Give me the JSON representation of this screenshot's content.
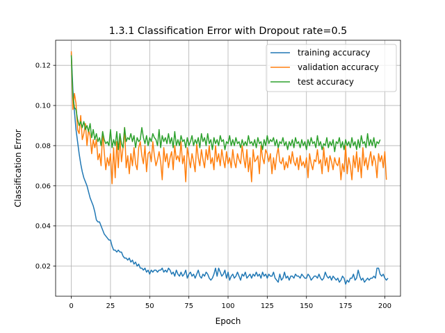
{
  "chart_data": {
    "type": "line",
    "title": "1.3.1 Classification Error with Dropout rate=0.5",
    "xlabel": "Epoch",
    "ylabel": "Classification Error",
    "xlim": [
      -10,
      210
    ],
    "ylim": [
      0.005,
      0.1325
    ],
    "xticks": [
      0,
      25,
      50,
      75,
      100,
      125,
      150,
      175,
      200
    ],
    "xtick_labels": [
      "0",
      "25",
      "50",
      "75",
      "100",
      "125",
      "150",
      "175",
      "200"
    ],
    "yticks": [
      0.02,
      0.04,
      0.06,
      0.08,
      0.1,
      0.12
    ],
    "ytick_labels": [
      "0.02",
      "0.04",
      "0.06",
      "0.08",
      "0.10",
      "0.12"
    ],
    "grid": true,
    "legend_position": "upper-right",
    "x": {
      "start": 0,
      "end": 199,
      "step": 1
    },
    "series": [
      {
        "name": "training accuracy",
        "color": "#1f77b4",
        "values": [
          0.126,
          0.108,
          0.097,
          0.088,
          0.082,
          0.076,
          0.071,
          0.067,
          0.064,
          0.062,
          0.06,
          0.057,
          0.054,
          0.052,
          0.05,
          0.047,
          0.043,
          0.042,
          0.042,
          0.04,
          0.038,
          0.036,
          0.035,
          0.034,
          0.033,
          0.033,
          0.03,
          0.028,
          0.028,
          0.027,
          0.028,
          0.027,
          0.027,
          0.025,
          0.024,
          0.024,
          0.023,
          0.024,
          0.022,
          0.023,
          0.021,
          0.022,
          0.02,
          0.021,
          0.019,
          0.019,
          0.018,
          0.019,
          0.017,
          0.018,
          0.016,
          0.018,
          0.017,
          0.018,
          0.018,
          0.017,
          0.018,
          0.018,
          0.019,
          0.017,
          0.018,
          0.017,
          0.019,
          0.018,
          0.016,
          0.017,
          0.015,
          0.018,
          0.016,
          0.015,
          0.017,
          0.015,
          0.016,
          0.018,
          0.014,
          0.016,
          0.017,
          0.015,
          0.016,
          0.014,
          0.016,
          0.018,
          0.015,
          0.014,
          0.016,
          0.015,
          0.017,
          0.016,
          0.014,
          0.013,
          0.014,
          0.016,
          0.019,
          0.015,
          0.019,
          0.017,
          0.015,
          0.016,
          0.018,
          0.014,
          0.017,
          0.013,
          0.015,
          0.016,
          0.014,
          0.015,
          0.017,
          0.015,
          0.013,
          0.016,
          0.015,
          0.017,
          0.014,
          0.015,
          0.016,
          0.014,
          0.016,
          0.015,
          0.017,
          0.015,
          0.016,
          0.014,
          0.017,
          0.015,
          0.016,
          0.014,
          0.016,
          0.015,
          0.015,
          0.017,
          0.014,
          0.013,
          0.012,
          0.016,
          0.013,
          0.014,
          0.017,
          0.014,
          0.015,
          0.013,
          0.015,
          0.015,
          0.014,
          0.016,
          0.015,
          0.015,
          0.014,
          0.016,
          0.015,
          0.014,
          0.014,
          0.016,
          0.015,
          0.013,
          0.014,
          0.015,
          0.015,
          0.014,
          0.016,
          0.014,
          0.013,
          0.014,
          0.017,
          0.015,
          0.014,
          0.015,
          0.013,
          0.015,
          0.014,
          0.013,
          0.014,
          0.012,
          0.013,
          0.015,
          0.014,
          0.011,
          0.013,
          0.012,
          0.014,
          0.014,
          0.016,
          0.013,
          0.014,
          0.018,
          0.015,
          0.013,
          0.014,
          0.012,
          0.013,
          0.014,
          0.013,
          0.014,
          0.014,
          0.015,
          0.014,
          0.019,
          0.019,
          0.016,
          0.015,
          0.016,
          0.014,
          0.013,
          0.014
        ]
      },
      {
        "name": "validation accuracy",
        "color": "#ff7f0e",
        "values": [
          0.127,
          0.098,
          0.106,
          0.101,
          0.088,
          0.086,
          0.095,
          0.083,
          0.086,
          0.091,
          0.08,
          0.088,
          0.085,
          0.076,
          0.083,
          0.079,
          0.083,
          0.073,
          0.076,
          0.07,
          0.087,
          0.077,
          0.068,
          0.074,
          0.07,
          0.076,
          0.061,
          0.079,
          0.064,
          0.082,
          0.069,
          0.084,
          0.072,
          0.079,
          0.089,
          0.069,
          0.075,
          0.066,
          0.076,
          0.07,
          0.079,
          0.071,
          0.068,
          0.079,
          0.082,
          0.075,
          0.071,
          0.08,
          0.067,
          0.076,
          0.077,
          0.072,
          0.082,
          0.075,
          0.07,
          0.073,
          0.077,
          0.072,
          0.063,
          0.079,
          0.072,
          0.076,
          0.069,
          0.074,
          0.077,
          0.068,
          0.08,
          0.073,
          0.075,
          0.072,
          0.082,
          0.071,
          0.075,
          0.062,
          0.079,
          0.074,
          0.069,
          0.076,
          0.072,
          0.067,
          0.081,
          0.074,
          0.07,
          0.078,
          0.073,
          0.069,
          0.078,
          0.073,
          0.08,
          0.071,
          0.074,
          0.068,
          0.08,
          0.072,
          0.076,
          0.07,
          0.078,
          0.073,
          0.069,
          0.077,
          0.071,
          0.074,
          0.069,
          0.078,
          0.072,
          0.069,
          0.076,
          0.073,
          0.071,
          0.08,
          0.074,
          0.069,
          0.078,
          0.067,
          0.074,
          0.062,
          0.078,
          0.072,
          0.073,
          0.075,
          0.066,
          0.08,
          0.074,
          0.071,
          0.078,
          0.076,
          0.072,
          0.076,
          0.066,
          0.074,
          0.068,
          0.075,
          0.079,
          0.072,
          0.071,
          0.074,
          0.068,
          0.072,
          0.069,
          0.075,
          0.071,
          0.077,
          0.072,
          0.07,
          0.074,
          0.068,
          0.075,
          0.07,
          0.072,
          0.069,
          0.074,
          0.064,
          0.076,
          0.071,
          0.068,
          0.073,
          0.072,
          0.078,
          0.071,
          0.073,
          0.066,
          0.079,
          0.07,
          0.074,
          0.067,
          0.075,
          0.072,
          0.068,
          0.074,
          0.071,
          0.07,
          0.074,
          0.063,
          0.071,
          0.067,
          0.08,
          0.066,
          0.074,
          0.07,
          0.063,
          0.075,
          0.069,
          0.077,
          0.067,
          0.074,
          0.064,
          0.079,
          0.07,
          0.074,
          0.068,
          0.073,
          0.077,
          0.07,
          0.075,
          0.072,
          0.064,
          0.076,
          0.072,
          0.075,
          0.069,
          0.077,
          0.063
        ]
      },
      {
        "name": "test accuracy",
        "color": "#2ca02c",
        "values": [
          0.125,
          0.104,
          0.099,
          0.098,
          0.093,
          0.09,
          0.092,
          0.089,
          0.092,
          0.088,
          0.09,
          0.087,
          0.091,
          0.084,
          0.088,
          0.083,
          0.086,
          0.082,
          0.084,
          0.08,
          0.087,
          0.083,
          0.081,
          0.082,
          0.08,
          0.088,
          0.079,
          0.083,
          0.08,
          0.087,
          0.078,
          0.086,
          0.081,
          0.079,
          0.089,
          0.082,
          0.084,
          0.083,
          0.086,
          0.082,
          0.085,
          0.079,
          0.084,
          0.082,
          0.083,
          0.089,
          0.084,
          0.081,
          0.085,
          0.08,
          0.084,
          0.082,
          0.086,
          0.084,
          0.083,
          0.08,
          0.088,
          0.079,
          0.085,
          0.082,
          0.084,
          0.081,
          0.086,
          0.081,
          0.084,
          0.079,
          0.087,
          0.08,
          0.083,
          0.08,
          0.085,
          0.082,
          0.083,
          0.079,
          0.084,
          0.08,
          0.082,
          0.085,
          0.08,
          0.083,
          0.081,
          0.084,
          0.079,
          0.086,
          0.082,
          0.084,
          0.08,
          0.086,
          0.081,
          0.083,
          0.078,
          0.084,
          0.081,
          0.083,
          0.08,
          0.085,
          0.082,
          0.083,
          0.078,
          0.082,
          0.081,
          0.085,
          0.08,
          0.083,
          0.08,
          0.084,
          0.081,
          0.082,
          0.079,
          0.083,
          0.08,
          0.082,
          0.08,
          0.085,
          0.081,
          0.082,
          0.08,
          0.083,
          0.079,
          0.084,
          0.081,
          0.082,
          0.078,
          0.083,
          0.08,
          0.085,
          0.081,
          0.083,
          0.082,
          0.084,
          0.08,
          0.083,
          0.079,
          0.082,
          0.081,
          0.084,
          0.08,
          0.082,
          0.078,
          0.082,
          0.08,
          0.083,
          0.079,
          0.084,
          0.081,
          0.082,
          0.079,
          0.083,
          0.08,
          0.082,
          0.078,
          0.083,
          0.08,
          0.084,
          0.081,
          0.082,
          0.079,
          0.085,
          0.08,
          0.082,
          0.078,
          0.081,
          0.08,
          0.084,
          0.079,
          0.082,
          0.08,
          0.083,
          0.077,
          0.082,
          0.081,
          0.084,
          0.079,
          0.082,
          0.078,
          0.083,
          0.08,
          0.082,
          0.079,
          0.084,
          0.08,
          0.082,
          0.078,
          0.083,
          0.079,
          0.085,
          0.081,
          0.082,
          0.079,
          0.086,
          0.08,
          0.083,
          0.08,
          0.084,
          0.079,
          0.082,
          0.081,
          0.083
        ]
      }
    ]
  }
}
